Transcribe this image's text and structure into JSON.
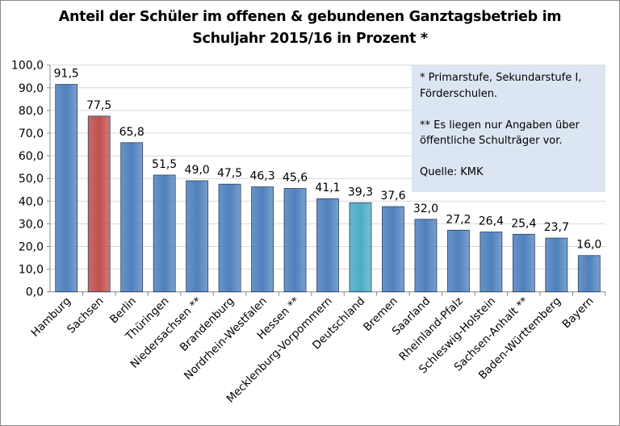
{
  "chart_data": {
    "type": "bar",
    "title_line1": "Anteil der Schüler im offenen & gebundenen Ganztagsbetrieb im",
    "title_line2": "Schuljahr 2015/16 in Prozent *",
    "categories": [
      "Hamburg",
      "Sachsen",
      "Berlin",
      "Thüringen",
      "Niedersachsen **",
      "Brandenburg",
      "Nordrhein-Westfalen",
      "Hessen **",
      "Mecklenburg-Vorpommern",
      "Deutschland",
      "Bremen",
      "Saarland",
      "Rheinland-Pfalz",
      "Schleswig-Holstein",
      "Sachsen-Anhalt **",
      "Baden-Württemberg",
      "Bayern"
    ],
    "values": [
      91.5,
      77.5,
      65.8,
      51.5,
      49.0,
      47.5,
      46.3,
      45.6,
      41.1,
      39.3,
      37.6,
      32.0,
      27.2,
      26.4,
      25.4,
      23.7,
      16.0
    ],
    "data_labels": [
      "91,5",
      "77,5",
      "65,8",
      "51,5",
      "49,0",
      "47,5",
      "46,3",
      "45,6",
      "41,1",
      "39,3",
      "37,6",
      "32,0",
      "27,2",
      "26,4",
      "25,4",
      "23,7",
      "16,0"
    ],
    "bar_colors": {
      "default": "#4f81bd",
      "Sachsen": "#c0504d",
      "Deutschland": "#4bacc6"
    },
    "ylim": [
      0,
      100
    ],
    "yticks": [
      "0,0",
      "10,0",
      "20,0",
      "30,0",
      "40,0",
      "50,0",
      "60,0",
      "70,0",
      "80,0",
      "90,0",
      "100,0"
    ],
    "grid": true,
    "xlabel": "",
    "ylabel": "",
    "legend": "none"
  },
  "note": {
    "line1": "* Primarstufe, Sekundarstufe  I,",
    "line2": "Förderschulen.",
    "line3": "** Es liegen nur Angaben über",
    "line4": "öffentliche Schulträger vor.",
    "line5": "Quelle: KMK"
  }
}
